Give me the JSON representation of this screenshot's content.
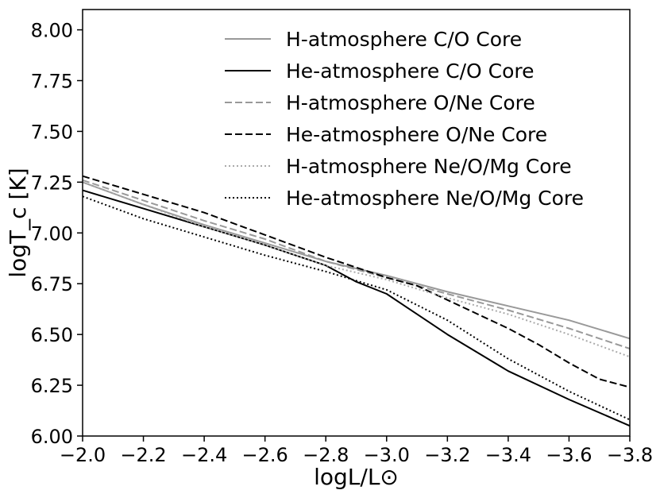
{
  "chart_data": {
    "type": "line",
    "xlabel": "logL/L⊙",
    "ylabel": "logT_c [K]",
    "xlim": [
      -2.0,
      -3.8
    ],
    "ylim": [
      6.0,
      8.1
    ],
    "x_ticks": [
      "−2.0",
      "−2.2",
      "−2.4",
      "−2.6",
      "−2.8",
      "−3.0",
      "−3.2",
      "−3.4",
      "−3.6",
      "−3.8"
    ],
    "x_tick_values": [
      -2.0,
      -2.2,
      -2.4,
      -2.6,
      -2.8,
      -3.0,
      -3.2,
      -3.4,
      -3.6,
      -3.8
    ],
    "y_ticks": [
      "6.00",
      "6.25",
      "6.50",
      "6.75",
      "7.00",
      "7.25",
      "7.50",
      "7.75",
      "8.00"
    ],
    "y_tick_values": [
      6.0,
      6.25,
      6.5,
      6.75,
      7.0,
      7.25,
      7.5,
      7.75,
      8.0
    ],
    "legend_position": "top-right",
    "grid": false,
    "series": [
      {
        "name": "H-atmosphere C/O Core",
        "color": "#999999",
        "dash": "solid",
        "x": [
          -2.0,
          -2.2,
          -2.4,
          -2.6,
          -2.8,
          -3.0,
          -3.2,
          -3.4,
          -3.6,
          -3.8
        ],
        "y": [
          7.25,
          7.14,
          7.04,
          6.95,
          6.86,
          6.79,
          6.71,
          6.64,
          6.57,
          6.48
        ]
      },
      {
        "name": "He-atmosphere C/O Core",
        "color": "#000000",
        "dash": "solid",
        "x": [
          -2.0,
          -2.2,
          -2.4,
          -2.6,
          -2.8,
          -2.9,
          -3.0,
          -3.1,
          -3.2,
          -3.4,
          -3.6,
          -3.8
        ],
        "y": [
          7.21,
          7.12,
          7.03,
          6.94,
          6.84,
          6.76,
          6.7,
          6.6,
          6.5,
          6.32,
          6.18,
          6.05
        ]
      },
      {
        "name": "H-atmosphere O/Ne Core",
        "color": "#999999",
        "dash": "dashed",
        "x": [
          -2.0,
          -2.2,
          -2.4,
          -2.6,
          -2.8,
          -3.0,
          -3.2,
          -3.4,
          -3.6,
          -3.8
        ],
        "y": [
          7.26,
          7.16,
          7.06,
          6.97,
          6.86,
          6.78,
          6.7,
          6.62,
          6.53,
          6.43
        ]
      },
      {
        "name": "He-atmosphere O/Ne Core",
        "color": "#000000",
        "dash": "dashed",
        "x": [
          -2.0,
          -2.2,
          -2.4,
          -2.6,
          -2.8,
          -3.0,
          -3.1,
          -3.2,
          -3.3,
          -3.4,
          -3.5,
          -3.6,
          -3.7,
          -3.8
        ],
        "y": [
          7.28,
          7.19,
          7.1,
          6.99,
          6.88,
          6.78,
          6.74,
          6.67,
          6.6,
          6.53,
          6.45,
          6.36,
          6.28,
          6.24
        ]
      },
      {
        "name": "H-atmosphere Ne/O/Mg Core",
        "color": "#aaaaaa",
        "dash": "dotted",
        "x": [
          -2.0,
          -2.2,
          -2.4,
          -2.6,
          -2.8,
          -3.0,
          -3.2,
          -3.4,
          -3.6,
          -3.8
        ],
        "y": [
          7.25,
          7.14,
          7.03,
          6.94,
          6.84,
          6.77,
          6.68,
          6.6,
          6.5,
          6.39
        ]
      },
      {
        "name": "He-atmosphere Ne/O/Mg Core",
        "color": "#000000",
        "dash": "dotted",
        "x": [
          -2.0,
          -2.2,
          -2.4,
          -2.6,
          -2.8,
          -3.0,
          -3.2,
          -3.4,
          -3.6,
          -3.8
        ],
        "y": [
          7.18,
          7.07,
          6.98,
          6.89,
          6.81,
          6.72,
          6.57,
          6.38,
          6.22,
          6.08
        ]
      }
    ]
  }
}
